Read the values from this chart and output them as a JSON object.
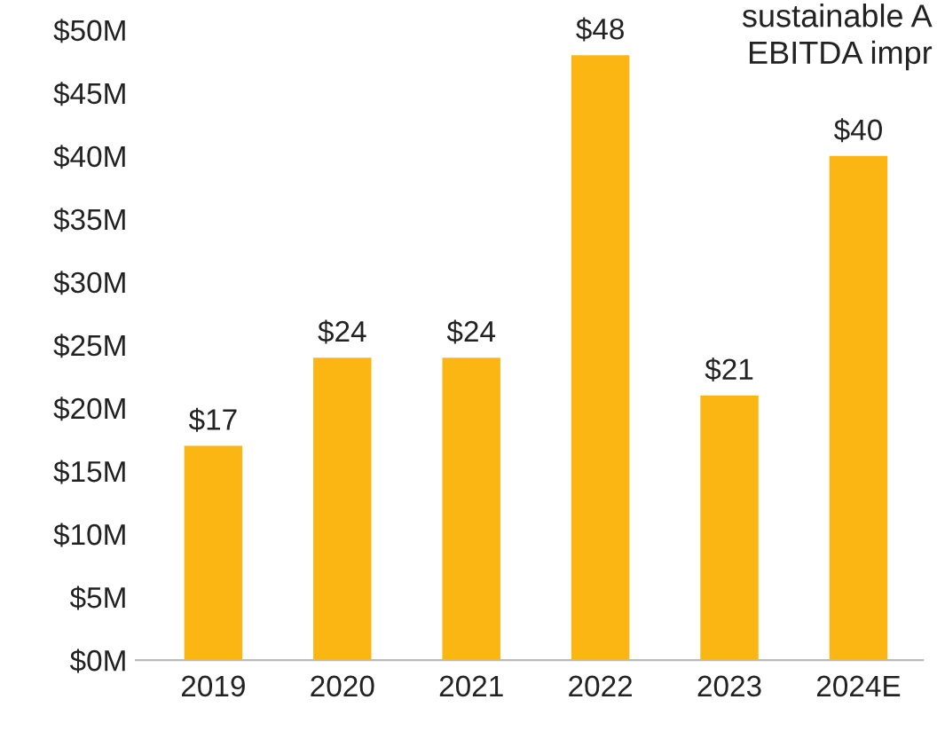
{
  "chart_data": {
    "type": "bar",
    "categories": [
      "2019",
      "2020",
      "2021",
      "2022",
      "2023",
      "2024E"
    ],
    "values": [
      17,
      24,
      24,
      48,
      21,
      40
    ],
    "value_labels": [
      "$17",
      "$24",
      "$24",
      "$48",
      "$21",
      "$40"
    ],
    "color": "#fbb614",
    "ylim": [
      0,
      50
    ],
    "yticks": [
      {
        "value": 0,
        "label": "$0M"
      },
      {
        "value": 5,
        "label": "$5M"
      },
      {
        "value": 10,
        "label": "$10M"
      },
      {
        "value": 15,
        "label": "$15M"
      },
      {
        "value": 20,
        "label": "$20M"
      },
      {
        "value": 25,
        "label": "$25M"
      },
      {
        "value": 30,
        "label": "$30M"
      },
      {
        "value": 35,
        "label": "$35M"
      },
      {
        "value": 40,
        "label": "$40M"
      },
      {
        "value": 45,
        "label": "$45M"
      },
      {
        "value": 50,
        "label": "$50M"
      }
    ],
    "grid": false,
    "legend": false,
    "annotations": [
      "sustainable A\nEBITDA impr"
    ]
  }
}
